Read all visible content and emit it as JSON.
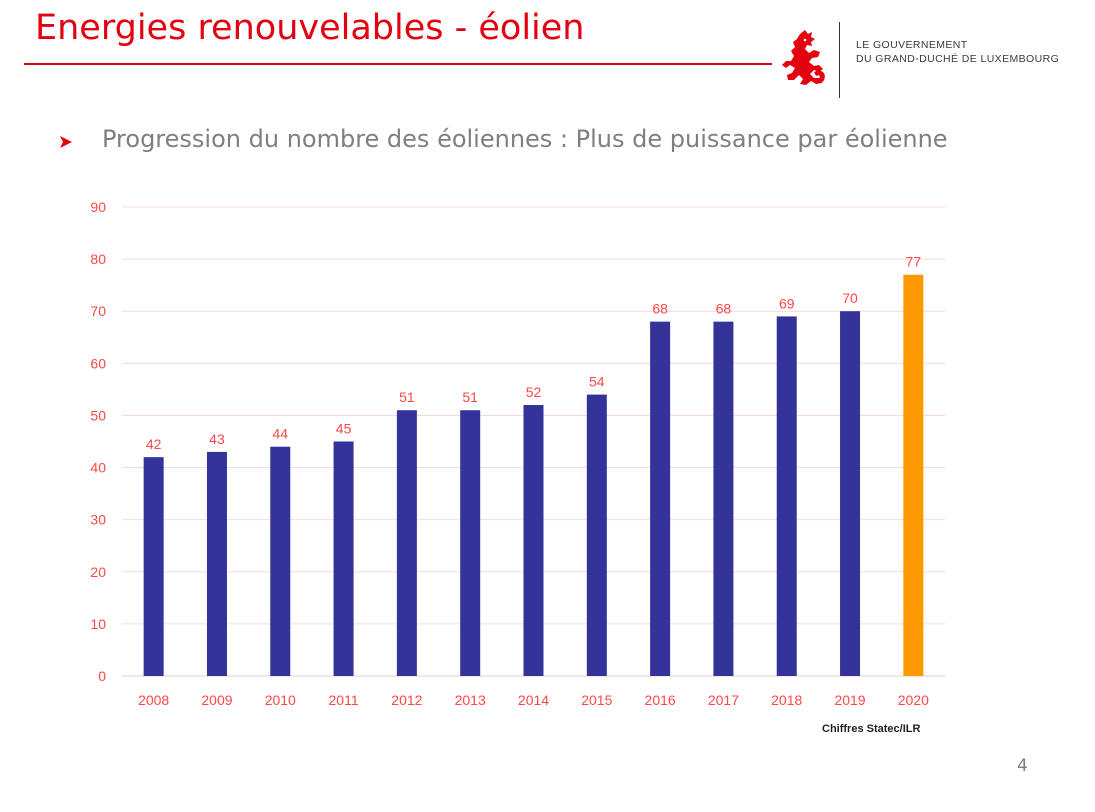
{
  "slide": {
    "title": "Energies renouvelables - éolien",
    "subtitle": "Progression du nombre des éoliennes : Plus de puissance par éolienne",
    "page_number": "4"
  },
  "logo": {
    "line1": "LE GOUVERNEMENT",
    "line2": "DU GRAND-DUCHÉ DE LUXEMBOURG",
    "icon": "red-lion-emblem"
  },
  "colors": {
    "title_red": "#e3000f",
    "bar_blue": "#333399",
    "bar_highlight": "#ff9900",
    "label_red": "#ff4747",
    "grid": "#f7d9dc"
  },
  "chart_data": {
    "type": "bar",
    "title": "",
    "xlabel": "",
    "ylabel": "",
    "categories": [
      "2008",
      "2009",
      "2010",
      "2011",
      "2012",
      "2013",
      "2014",
      "2015",
      "2016",
      "2017",
      "2018",
      "2019",
      "2020"
    ],
    "values": [
      42,
      43,
      44,
      45,
      51,
      51,
      52,
      54,
      68,
      68,
      69,
      70,
      77
    ],
    "highlight_category": "2020",
    "ylim": [
      0,
      90
    ],
    "yticks": [
      0,
      10,
      20,
      30,
      40,
      50,
      60,
      70,
      80,
      90
    ],
    "grid": true,
    "data_labels": true,
    "legend": "none",
    "source_note": "Chiffres Statec/ILR"
  }
}
